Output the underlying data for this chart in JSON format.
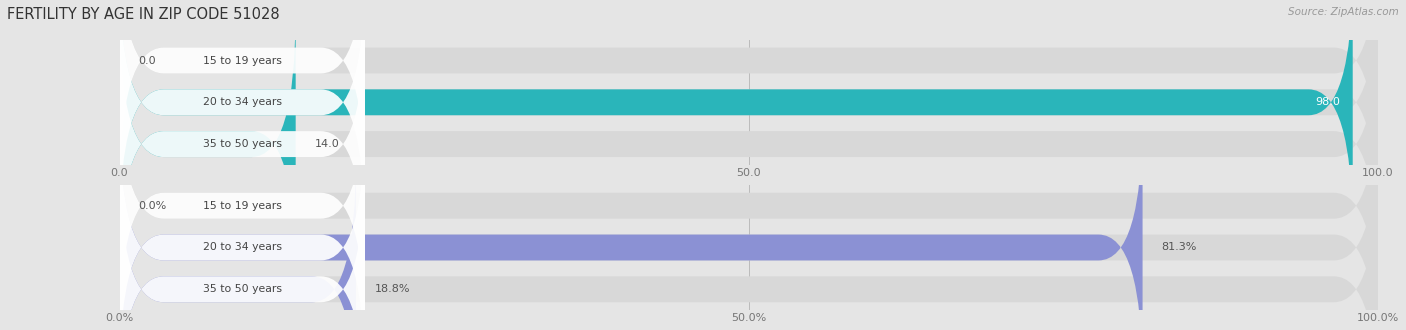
{
  "title": "FERTILITY BY AGE IN ZIP CODE 51028",
  "source": "Source: ZipAtlas.com",
  "fig_bg": "#e5e5e5",
  "top_chart": {
    "categories": [
      "15 to 19 years",
      "20 to 34 years",
      "35 to 50 years"
    ],
    "values": [
      0.0,
      98.0,
      14.0
    ],
    "max_value": 100.0,
    "bar_color": "#2ab5ba",
    "bar_bg_color": "#d8d8d8",
    "label_fill": "#ffffff",
    "x_ticks": [
      0.0,
      50.0,
      100.0
    ],
    "x_tick_labels": [
      "0.0",
      "50.0",
      "100.0"
    ],
    "pct_suffix": ""
  },
  "bottom_chart": {
    "categories": [
      "15 to 19 years",
      "20 to 34 years",
      "35 to 50 years"
    ],
    "values": [
      0.0,
      81.3,
      18.8
    ],
    "max_value": 100.0,
    "bar_color": "#8b91d4",
    "bar_bg_color": "#d8d8d8",
    "label_fill": "#ffffff",
    "x_ticks": [
      0.0,
      50.0,
      100.0
    ],
    "x_tick_labels": [
      "0.0%",
      "50.0%",
      "100.0%"
    ],
    "pct_suffix": "%"
  }
}
